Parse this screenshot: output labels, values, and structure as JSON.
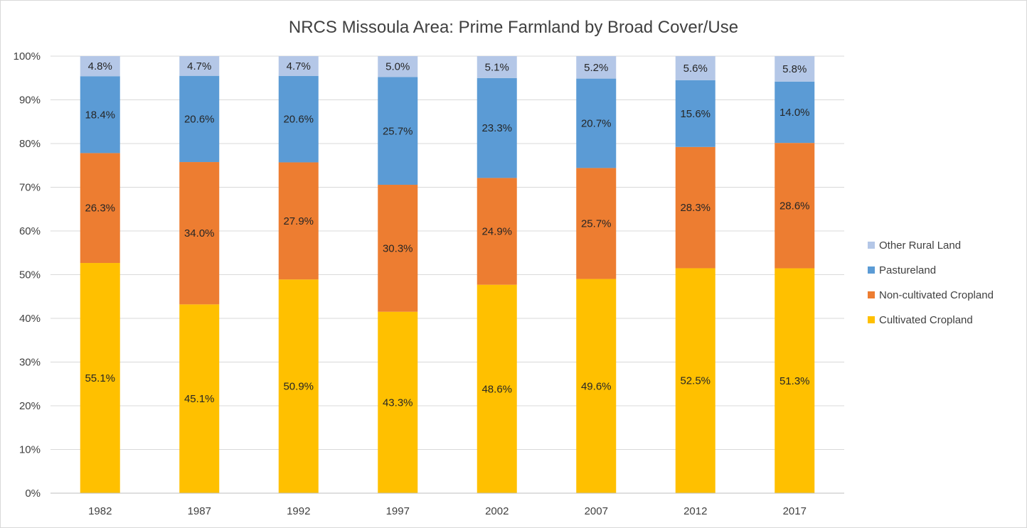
{
  "chart_data": {
    "type": "bar",
    "stacked": true,
    "normalized": true,
    "title": "NRCS Missoula Area:  Prime Farmland by Broad Cover/Use",
    "xlabel": "",
    "ylabel": "",
    "categories": [
      "1982",
      "1987",
      "1992",
      "1997",
      "2002",
      "2007",
      "2012",
      "2017"
    ],
    "ylim": [
      0,
      100
    ],
    "yticks": [
      "0%",
      "10%",
      "20%",
      "30%",
      "40%",
      "50%",
      "60%",
      "70%",
      "80%",
      "90%",
      "100%"
    ],
    "grid": true,
    "legend_position": "right",
    "series": [
      {
        "name": "Cultivated Cropland",
        "color": "#ffc000",
        "values": [
          55.1,
          45.1,
          50.9,
          43.3,
          48.6,
          49.6,
          52.5,
          51.3
        ],
        "labels": [
          "55.1%",
          "45.1%",
          "50.9%",
          "43.3%",
          "48.6%",
          "49.6%",
          "52.5%",
          "51.3%"
        ]
      },
      {
        "name": "Non-cultivated Cropland",
        "color": "#ed7d31",
        "values": [
          26.3,
          34.0,
          27.9,
          30.3,
          24.9,
          25.7,
          28.3,
          28.6
        ],
        "labels": [
          "26.3%",
          "34.0%",
          "27.9%",
          "30.3%",
          "24.9%",
          "25.7%",
          "28.3%",
          "28.6%"
        ]
      },
      {
        "name": "Pastureland",
        "color": "#5b9bd5",
        "values": [
          18.4,
          20.6,
          20.6,
          25.7,
          23.3,
          20.7,
          15.6,
          14.0
        ],
        "labels": [
          "18.4%",
          "20.6%",
          "20.6%",
          "25.7%",
          "23.3%",
          "20.7%",
          "15.6%",
          "14.0%"
        ]
      },
      {
        "name": "Other Rural Land",
        "color": "#b4c7e7",
        "values": [
          4.8,
          4.7,
          4.7,
          5.0,
          5.1,
          5.2,
          5.6,
          5.8
        ],
        "labels": [
          "4.8%",
          "4.7%",
          "4.7%",
          "5.0%",
          "5.1%",
          "5.2%",
          "5.6%",
          "5.8%"
        ]
      }
    ]
  }
}
